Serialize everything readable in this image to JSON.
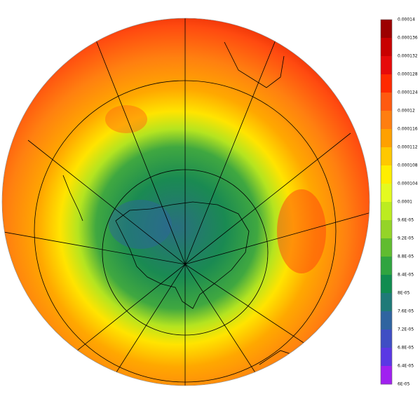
{
  "colorbar": {
    "labels": [
      "0.00014",
      "0.000136",
      "0.000132",
      "0.000128",
      "0.000124",
      "0.00012",
      "0.000116",
      "0.000112",
      "0.000108",
      "0.000104",
      "0.0001",
      "9.6E-05",
      "9.2E-05",
      "8.8E-05",
      "8.4E-05",
      "8E-05",
      "7.6E-05",
      "7.2E-05",
      "6.8E-05",
      "6.4E-05",
      "6E-05"
    ],
    "colors": [
      "#9c0000",
      "#c80000",
      "#e60a0a",
      "#ff2a00",
      "#ff5a10",
      "#ff7e10",
      "#ffa000",
      "#ffc800",
      "#ffee00",
      "#e4fa20",
      "#bcec20",
      "#94d428",
      "#60bc30",
      "#30a440",
      "#108c50",
      "#1f7a78",
      "#2f64a0",
      "#3f4ec4",
      "#5a38e4",
      "#a020f0"
    ]
  }
}
